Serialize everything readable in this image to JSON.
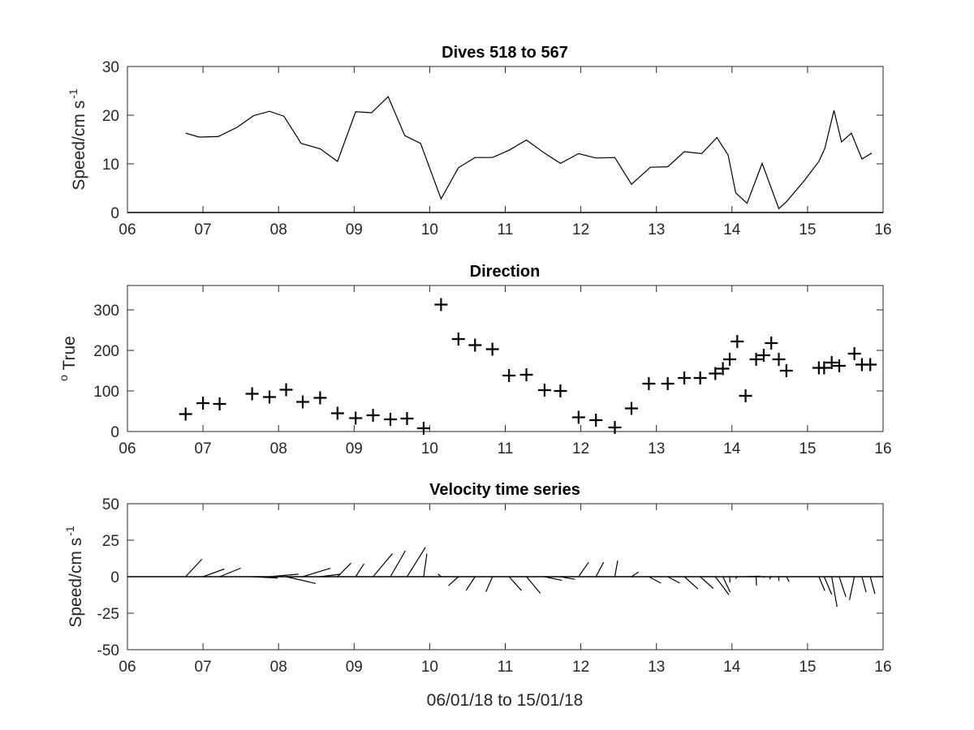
{
  "xlabel": "06/01/18 to 15/01/18",
  "chart_data": [
    {
      "type": "line",
      "title": "Dives 518 to 567",
      "ylabel_main": "Speed/cm s",
      "ylabel_sup": "-1",
      "xlim": [
        6,
        16
      ],
      "ylim": [
        0,
        30
      ],
      "xticks": [
        "06",
        "07",
        "08",
        "09",
        "10",
        "11",
        "12",
        "13",
        "14",
        "15",
        "16"
      ],
      "yticks": [
        "0",
        "10",
        "20",
        "30"
      ],
      "x": [
        6.77,
        6.95,
        7.2,
        7.45,
        7.67,
        7.88,
        8.07,
        8.3,
        8.55,
        8.78,
        9.02,
        9.23,
        9.45,
        9.67,
        9.88,
        10.15,
        10.38,
        10.6,
        10.83,
        11.05,
        11.28,
        11.52,
        11.73,
        11.97,
        12.2,
        12.45,
        12.67,
        12.92,
        13.15,
        13.37,
        13.6,
        13.8,
        13.95,
        14.05,
        14.2,
        14.4,
        14.62,
        14.72,
        14.95,
        15.15,
        15.23,
        15.35,
        15.45,
        15.58,
        15.72,
        15.85
      ],
      "y": [
        16.3,
        15.5,
        15.6,
        17.5,
        19.9,
        20.8,
        19.8,
        14.2,
        13.1,
        10.5,
        20.7,
        20.5,
        23.8,
        15.8,
        14.2,
        2.8,
        9.2,
        11.3,
        11.3,
        12.8,
        14.9,
        12.2,
        10.1,
        12.1,
        11.2,
        11.3,
        5.8,
        9.3,
        9.4,
        12.5,
        12.1,
        15.4,
        11.8,
        4.0,
        1.9,
        10.1,
        0.8,
        2.2,
        6.4,
        10.5,
        13.2,
        21.0,
        14.5,
        16.3,
        11.0,
        12.2
      ]
    },
    {
      "type": "scatter",
      "title": "Direction",
      "ylabel_sup": "o",
      "ylabel_main": " True",
      "xlim": [
        6,
        16
      ],
      "ylim": [
        0,
        360
      ],
      "xticks": [
        "06",
        "07",
        "08",
        "09",
        "10",
        "11",
        "12",
        "13",
        "14",
        "15",
        "16"
      ],
      "yticks": [
        "0",
        "100",
        "200",
        "300"
      ],
      "x": [
        6.77,
        7.0,
        7.22,
        7.65,
        7.88,
        8.1,
        8.32,
        8.55,
        8.78,
        9.02,
        9.25,
        9.48,
        9.7,
        9.92,
        10.15,
        10.38,
        10.6,
        10.83,
        11.05,
        11.28,
        11.52,
        11.73,
        11.97,
        12.2,
        12.45,
        12.67,
        12.9,
        13.15,
        13.37,
        13.58,
        13.78,
        13.88,
        13.97,
        14.07,
        14.18,
        14.32,
        14.42,
        14.52,
        14.62,
        14.72,
        15.15,
        15.22,
        15.32,
        15.42,
        15.62,
        15.72,
        15.83
      ],
      "y": [
        43,
        70,
        68,
        93,
        85,
        103,
        73,
        83,
        45,
        33,
        40,
        30,
        32,
        8,
        313,
        228,
        213,
        203,
        138,
        140,
        102,
        100,
        35,
        28,
        10,
        57,
        118,
        118,
        132,
        132,
        143,
        155,
        178,
        222,
        88,
        178,
        188,
        218,
        178,
        150,
        157,
        157,
        170,
        162,
        192,
        165,
        165
      ]
    },
    {
      "type": "stick",
      "title": "Velocity time series",
      "ylabel_main": "Speed/cm s",
      "ylabel_sup": "-1",
      "xlim": [
        6,
        16
      ],
      "ylim": [
        -50,
        50
      ],
      "xticks": [
        "06",
        "07",
        "08",
        "09",
        "10",
        "11",
        "12",
        "13",
        "14",
        "15",
        "16"
      ],
      "yticks": [
        "-50",
        "-25",
        "0",
        "25",
        "50"
      ],
      "x": [
        6.77,
        7.0,
        7.22,
        7.65,
        7.88,
        8.1,
        8.32,
        8.55,
        8.78,
        9.02,
        9.25,
        9.48,
        9.7,
        9.92,
        10.15,
        10.38,
        10.6,
        10.83,
        11.05,
        11.28,
        11.52,
        11.73,
        11.97,
        12.2,
        12.45,
        12.67,
        12.9,
        13.15,
        13.37,
        13.58,
        13.78,
        13.88,
        13.97,
        14.07,
        14.18,
        14.32,
        14.42,
        14.52,
        14.62,
        14.72,
        15.15,
        15.22,
        15.32,
        15.42,
        15.62,
        15.72,
        15.83
      ],
      "speed": [
        16.3,
        15.5,
        15.6,
        17.5,
        19.9,
        20.8,
        19.8,
        14.2,
        13.1,
        10.5,
        20.7,
        20.5,
        23.8,
        15.8,
        2.8,
        9.2,
        11.3,
        11.3,
        12.8,
        14.9,
        12.2,
        10.1,
        12.1,
        11.2,
        11.3,
        5.8,
        9.3,
        9.4,
        12.5,
        12.1,
        15.4,
        11.8,
        4.0,
        1.9,
        10.1,
        6.0,
        0.8,
        2.2,
        3.0,
        4.0,
        10.5,
        13.2,
        21.0,
        14.5,
        16.3,
        11.0,
        12.2
      ],
      "direction": [
        43,
        70,
        68,
        93,
        85,
        103,
        73,
        83,
        45,
        33,
        40,
        30,
        32,
        8,
        313,
        228,
        213,
        203,
        138,
        140,
        102,
        100,
        35,
        28,
        10,
        57,
        118,
        118,
        132,
        132,
        143,
        155,
        178,
        222,
        88,
        178,
        188,
        218,
        178,
        150,
        157,
        157,
        170,
        162,
        192,
        165,
        165
      ]
    }
  ]
}
